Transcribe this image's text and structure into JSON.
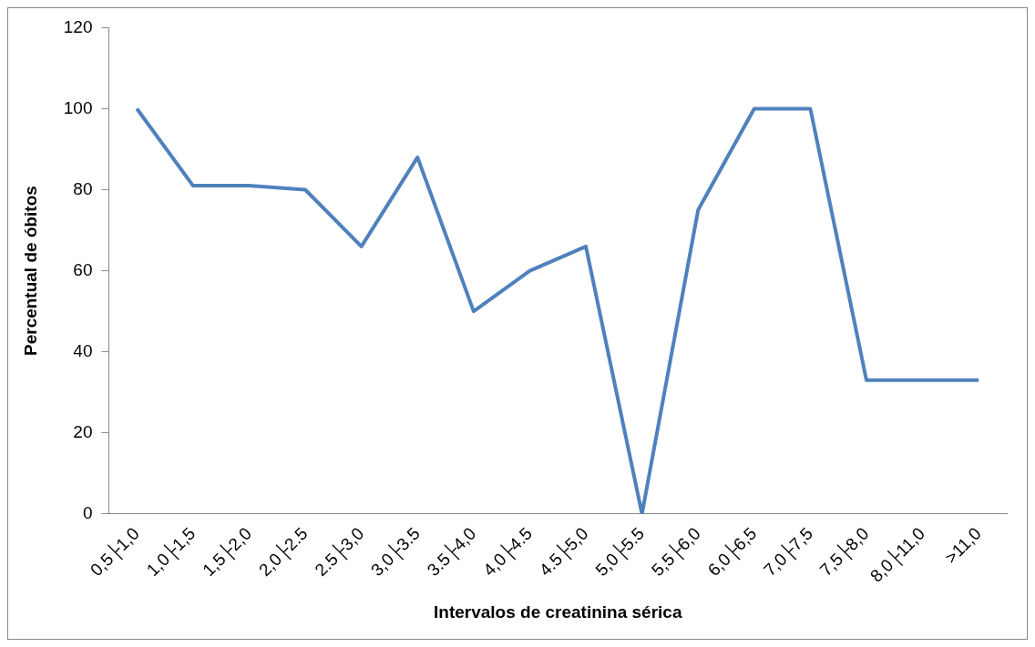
{
  "chart_data": {
    "type": "line",
    "xlabel": "Intervalos de creatinina sérica",
    "ylabel": "Percentual de óbitos",
    "categories": [
      "0,5├1,0",
      "1,0├1,5",
      "1,5├2,0",
      "2,0├2.5",
      "2.5├3,0",
      "3,0├3.5",
      "3.5├4,0",
      "4,0├4.5",
      "4.5├5,0",
      "5,0├5.5",
      "5,5├6,0",
      "6,0├6,5",
      "7,0├7,5",
      "7,5├8,0",
      "8,0├11,0",
      ">11,0"
    ],
    "series": [
      {
        "color": "#4f81bd",
        "values": [
          100,
          81,
          81,
          80,
          66,
          88,
          50,
          60,
          66,
          0,
          75,
          100,
          100,
          33,
          33,
          33
        ]
      }
    ],
    "ylim": [
      0,
      120
    ],
    "yticks": [
      0,
      20,
      40,
      60,
      80,
      100,
      120
    ],
    "grid": false,
    "legend": false,
    "marker": "none",
    "line_style": "solid"
  }
}
